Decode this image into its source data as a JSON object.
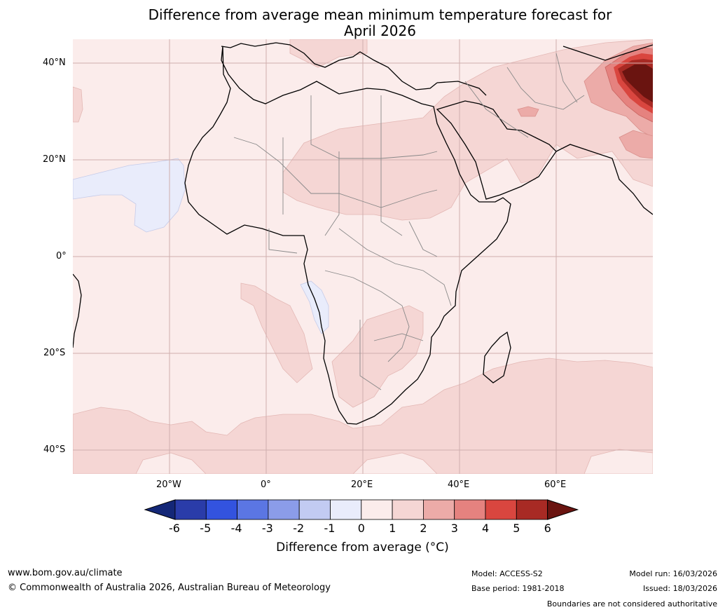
{
  "title_line1": "Difference from average mean minimum temperature forecast for",
  "title_line2": "April 2026",
  "lat_labels": [
    "40°N",
    "20°N",
    "0°",
    "20°S",
    "40°S"
  ],
  "lon_labels": [
    "20°W",
    "0°",
    "20°E",
    "40°E",
    "60°E"
  ],
  "colorbar": {
    "ticks": [
      "-6",
      "-5",
      "-4",
      "-3",
      "-2",
      "-1",
      "0",
      "1",
      "2",
      "3",
      "4",
      "5",
      "6"
    ],
    "colors": [
      "#142777",
      "#2a3ca9",
      "#3353df",
      "#5b76e3",
      "#8b9ce9",
      "#c2cbf2",
      "#e9ecfb",
      "#fbeceb",
      "#f5d6d4",
      "#ecaba8",
      "#e5827f",
      "#d9463f",
      "#a82a24",
      "#6a1410"
    ],
    "title": "Difference from average ($^\\circ$C)",
    "title_display": "Difference from average (°C)"
  },
  "footer": {
    "url": "www.bom.gov.au/climate",
    "copyright": "© Commonwealth of Australia 2026, Australian Bureau of Meteorology",
    "model": "Model: ACCESS-S2",
    "base_period": "Base period: 1981-2018",
    "model_run": "Model run: 16/03/2026",
    "issued": "Issued: 18/03/2026",
    "disclaimer": "Boundaries are not considered authoritative"
  }
}
